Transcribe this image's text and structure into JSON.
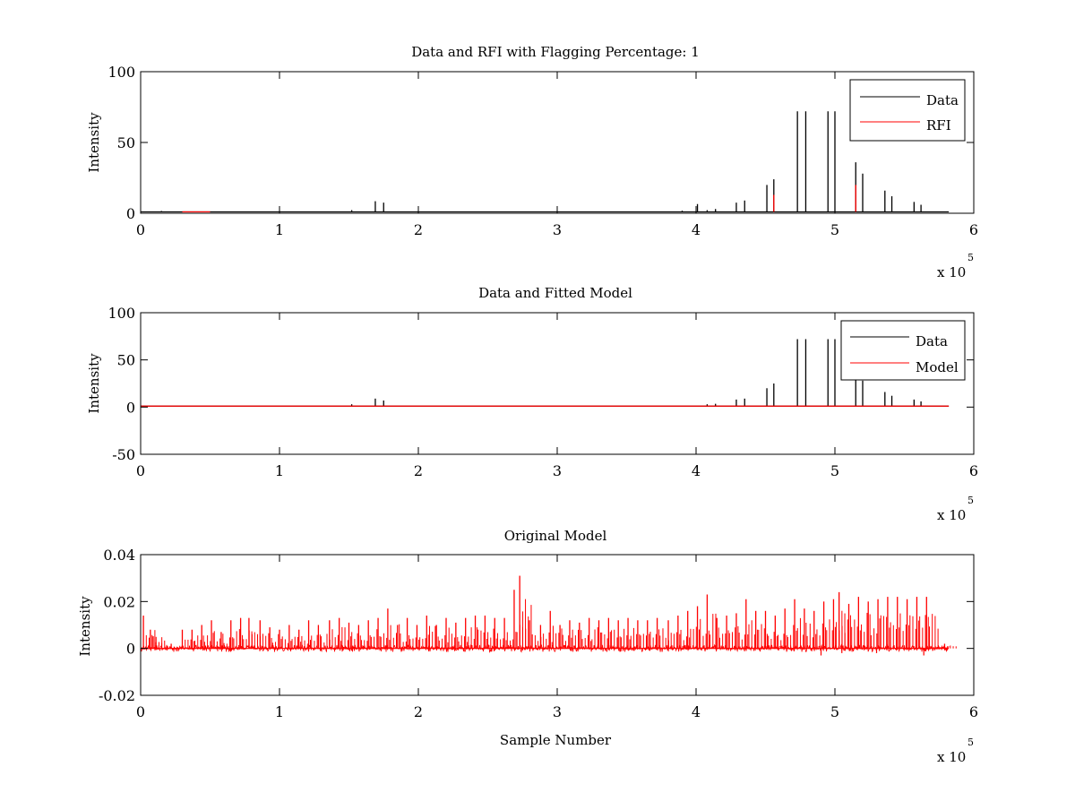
{
  "chart_data": [
    {
      "type": "line",
      "title": "Data and RFI with Flagging Percentage: 1",
      "xlabel": "",
      "ylabel": "Intensity",
      "xlim": [
        0,
        6
      ],
      "ylim": [
        0,
        100
      ],
      "x_ticks": [
        "0",
        "1",
        "2",
        "3",
        "4",
        "5",
        "6"
      ],
      "y_ticks": [
        "0",
        "50",
        "100"
      ],
      "x_multiplier": "x 10",
      "x_multiplier_exp": "5",
      "legend": {
        "placement": "top-right",
        "entries": [
          {
            "label": "Data",
            "color": "#000000"
          },
          {
            "label": "RFI",
            "color": "#ff0000"
          }
        ]
      },
      "grid": false,
      "series": [
        {
          "name": "Data",
          "color": "#000000",
          "baseline": 1,
          "x_end": 5.82,
          "spikes": [
            {
              "x": 0.15,
              "y": 1.6
            },
            {
              "x": 1.52,
              "y": 2.2
            },
            {
              "x": 1.69,
              "y": 8.5
            },
            {
              "x": 1.75,
              "y": 7.5
            },
            {
              "x": 3.9,
              "y": 1.8
            },
            {
              "x": 4.01,
              "y": 6.5
            },
            {
              "x": 4.08,
              "y": 2.2
            },
            {
              "x": 4.14,
              "y": 3.0
            },
            {
              "x": 4.29,
              "y": 7.5
            },
            {
              "x": 4.35,
              "y": 9.0
            },
            {
              "x": 4.51,
              "y": 20.0
            },
            {
              "x": 4.56,
              "y": 24.0
            },
            {
              "x": 4.73,
              "y": 72.0
            },
            {
              "x": 4.79,
              "y": 72.0
            },
            {
              "x": 4.95,
              "y": 72.0
            },
            {
              "x": 5.0,
              "y": 72.0
            },
            {
              "x": 5.15,
              "y": 36.0
            },
            {
              "x": 5.2,
              "y": 28.0
            },
            {
              "x": 5.36,
              "y": 16.0
            },
            {
              "x": 5.41,
              "y": 12.0
            },
            {
              "x": 5.57,
              "y": 8.0
            },
            {
              "x": 5.62,
              "y": 6.0
            }
          ]
        },
        {
          "name": "RFI",
          "color": "#ff0000",
          "baseline": 1,
          "x_range": [
            0.3,
            0.5
          ],
          "spikes": [
            {
              "x": 5.15,
              "y": 20.0
            },
            {
              "x": 4.56,
              "y": 13.0
            }
          ]
        }
      ]
    },
    {
      "type": "line",
      "title": "Data and Fitted Model",
      "xlabel": "",
      "ylabel": "Intensity",
      "xlim": [
        0,
        6
      ],
      "ylim": [
        -50,
        100
      ],
      "x_ticks": [
        "0",
        "1",
        "2",
        "3",
        "4",
        "5",
        "6"
      ],
      "y_ticks": [
        "-50",
        "0",
        "50",
        "100"
      ],
      "x_multiplier": "x 10",
      "x_multiplier_exp": "5",
      "legend": {
        "placement": "top-right",
        "entries": [
          {
            "label": "Data",
            "color": "#000000"
          },
          {
            "label": "Model",
            "color": "#ff0000"
          }
        ]
      },
      "grid": false,
      "series": [
        {
          "name": "Data",
          "color": "#000000",
          "baseline": 1,
          "x_end": 5.82,
          "spikes": [
            {
              "x": 1.52,
              "y": 3.0
            },
            {
              "x": 1.69,
              "y": 9.0
            },
            {
              "x": 1.75,
              "y": 7.0
            },
            {
              "x": 4.08,
              "y": 3.0
            },
            {
              "x": 4.14,
              "y": 3.5
            },
            {
              "x": 4.29,
              "y": 8.0
            },
            {
              "x": 4.35,
              "y": 9.0
            },
            {
              "x": 4.51,
              "y": 20.0
            },
            {
              "x": 4.56,
              "y": 25.0
            },
            {
              "x": 4.73,
              "y": 72.0
            },
            {
              "x": 4.79,
              "y": 72.0
            },
            {
              "x": 4.95,
              "y": 72.0
            },
            {
              "x": 5.0,
              "y": 72.0
            },
            {
              "x": 5.15,
              "y": 36.0
            },
            {
              "x": 5.2,
              "y": 28.0
            },
            {
              "x": 5.36,
              "y": 16.0
            },
            {
              "x": 5.41,
              "y": 12.0
            },
            {
              "x": 5.57,
              "y": 8.0
            },
            {
              "x": 5.62,
              "y": 6.0
            }
          ]
        },
        {
          "name": "Model",
          "color": "#ff0000",
          "baseline": 1,
          "x_end": 5.82,
          "spikes": []
        }
      ]
    },
    {
      "type": "line",
      "title": "Original Model",
      "xlabel": "Sample Number",
      "ylabel": "Intensity",
      "xlim": [
        0,
        6
      ],
      "ylim": [
        -0.02,
        0.04
      ],
      "x_ticks": [
        "0",
        "1",
        "2",
        "3",
        "4",
        "5",
        "6"
      ],
      "y_ticks": [
        "-0.02",
        "0",
        "0.02",
        "0.04"
      ],
      "x_multiplier": "x 10",
      "x_multiplier_exp": "5",
      "grid": false,
      "series": [
        {
          "color": "#ff0000",
          "baseline": 0,
          "x_end": 5.82,
          "noise_amplitude": 0.0015,
          "spikes": [
            {
              "x": 0.02,
              "y": 0.014
            },
            {
              "x": 0.07,
              "y": 0.008
            },
            {
              "x": 0.09,
              "y": 0.005
            },
            {
              "x": 0.22,
              "y": 0.002
            },
            {
              "x": 0.3,
              "y": 0.008
            },
            {
              "x": 0.37,
              "y": 0.008
            },
            {
              "x": 0.44,
              "y": 0.01
            },
            {
              "x": 0.51,
              "y": 0.012
            },
            {
              "x": 0.58,
              "y": 0.007
            },
            {
              "x": 0.65,
              "y": 0.012
            },
            {
              "x": 0.72,
              "y": 0.013
            },
            {
              "x": 0.78,
              "y": 0.013
            },
            {
              "x": 0.86,
              "y": 0.012
            },
            {
              "x": 0.93,
              "y": 0.009
            },
            {
              "x": 1.0,
              "y": 0.008
            },
            {
              "x": 1.07,
              "y": 0.01
            },
            {
              "x": 1.14,
              "y": 0.008
            },
            {
              "x": 1.21,
              "y": 0.012
            },
            {
              "x": 1.28,
              "y": 0.01
            },
            {
              "x": 1.36,
              "y": 0.012
            },
            {
              "x": 1.43,
              "y": 0.013
            },
            {
              "x": 1.5,
              "y": 0.011
            },
            {
              "x": 1.57,
              "y": 0.01
            },
            {
              "x": 1.64,
              "y": 0.012
            },
            {
              "x": 1.71,
              "y": 0.013
            },
            {
              "x": 1.78,
              "y": 0.017
            },
            {
              "x": 1.85,
              "y": 0.01
            },
            {
              "x": 1.92,
              "y": 0.013
            },
            {
              "x": 1.99,
              "y": 0.01
            },
            {
              "x": 2.06,
              "y": 0.014
            },
            {
              "x": 2.13,
              "y": 0.01
            },
            {
              "x": 2.2,
              "y": 0.013
            },
            {
              "x": 2.27,
              "y": 0.011
            },
            {
              "x": 2.34,
              "y": 0.013
            },
            {
              "x": 2.41,
              "y": 0.014
            },
            {
              "x": 2.48,
              "y": 0.014
            },
            {
              "x": 2.55,
              "y": 0.013
            },
            {
              "x": 2.62,
              "y": 0.013
            },
            {
              "x": 2.69,
              "y": 0.025
            },
            {
              "x": 2.73,
              "y": 0.031
            },
            {
              "x": 2.8,
              "y": 0.012
            },
            {
              "x": 2.88,
              "y": 0.01
            },
            {
              "x": 2.95,
              "y": 0.016
            },
            {
              "x": 3.02,
              "y": 0.01
            },
            {
              "x": 3.09,
              "y": 0.012
            },
            {
              "x": 3.16,
              "y": 0.011
            },
            {
              "x": 3.23,
              "y": 0.013
            },
            {
              "x": 3.3,
              "y": 0.012
            },
            {
              "x": 3.37,
              "y": 0.013
            },
            {
              "x": 3.44,
              "y": 0.012
            },
            {
              "x": 3.51,
              "y": 0.013
            },
            {
              "x": 3.58,
              "y": 0.012
            },
            {
              "x": 3.65,
              "y": 0.012
            },
            {
              "x": 3.72,
              "y": 0.013
            },
            {
              "x": 3.8,
              "y": 0.012
            },
            {
              "x": 3.87,
              "y": 0.014
            },
            {
              "x": 3.94,
              "y": 0.016
            },
            {
              "x": 4.01,
              "y": 0.018
            },
            {
              "x": 4.08,
              "y": 0.023
            },
            {
              "x": 4.15,
              "y": 0.013
            },
            {
              "x": 4.22,
              "y": 0.014
            },
            {
              "x": 4.29,
              "y": 0.015
            },
            {
              "x": 4.36,
              "y": 0.021
            },
            {
              "x": 4.43,
              "y": 0.016
            },
            {
              "x": 4.5,
              "y": 0.016
            },
            {
              "x": 4.57,
              "y": 0.014
            },
            {
              "x": 4.64,
              "y": 0.017
            },
            {
              "x": 4.71,
              "y": 0.021
            },
            {
              "x": 4.78,
              "y": 0.017
            },
            {
              "x": 4.85,
              "y": 0.016
            },
            {
              "x": 4.92,
              "y": 0.02
            },
            {
              "x": 4.99,
              "y": 0.021
            },
            {
              "x": 5.03,
              "y": 0.024
            },
            {
              "x": 5.1,
              "y": 0.019
            },
            {
              "x": 5.17,
              "y": 0.022
            },
            {
              "x": 5.24,
              "y": 0.02
            },
            {
              "x": 5.31,
              "y": 0.021
            },
            {
              "x": 5.38,
              "y": 0.022
            },
            {
              "x": 5.45,
              "y": 0.022
            },
            {
              "x": 5.52,
              "y": 0.021
            },
            {
              "x": 5.59,
              "y": 0.022
            },
            {
              "x": 5.66,
              "y": 0.022
            },
            {
              "x": 5.79,
              "y": 0.002
            }
          ],
          "dips": [
            {
              "x": 4.9,
              "y": -0.003
            },
            {
              "x": 5.05,
              "y": -0.002
            },
            {
              "x": 5.3,
              "y": -0.002
            },
            {
              "x": 5.64,
              "y": -0.003
            }
          ]
        }
      ]
    }
  ]
}
